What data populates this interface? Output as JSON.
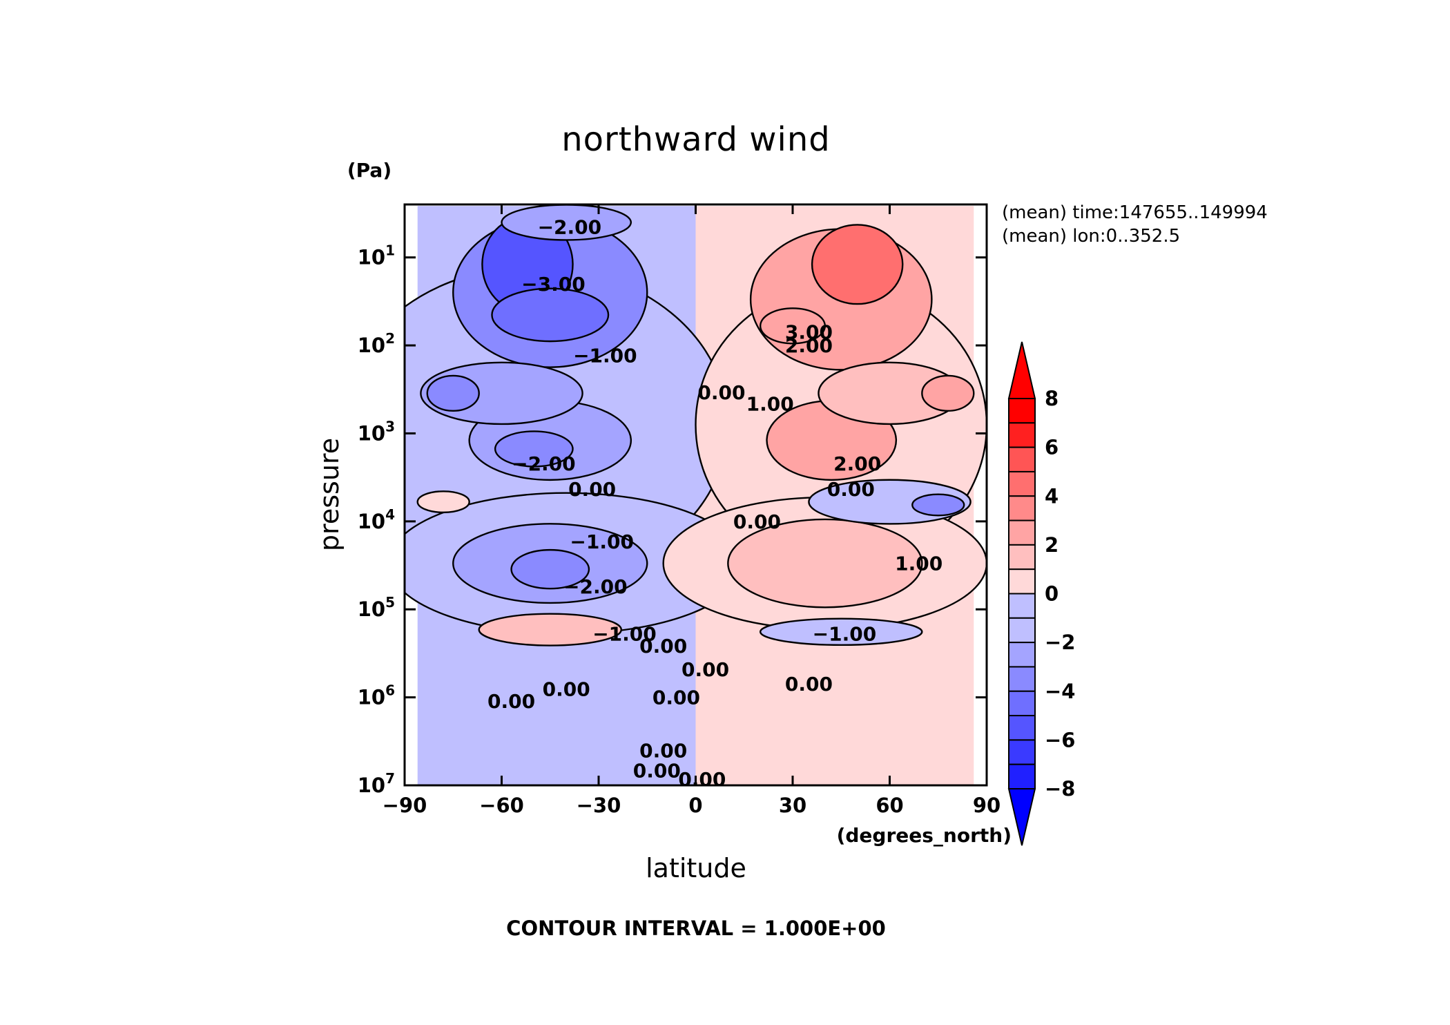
{
  "chart_data": {
    "type": "heatmap",
    "plot_style": "filled contour (shaded) with black contour lines",
    "title": "northward wind",
    "xlabel": "latitude",
    "ylabel": "pressure",
    "x_unit": "(degrees_north)",
    "y_unit": "(Pa)",
    "x_ticks": [
      "−90",
      "−60",
      "−30",
      "0",
      "30",
      "60",
      "90"
    ],
    "x_tick_values": [
      -90,
      -60,
      -30,
      0,
      30,
      60,
      90
    ],
    "xlim": [
      -90,
      90
    ],
    "y_scale": "log",
    "ylim": [
      10000000,
      2.5
    ],
    "y_ticks": [
      {
        "base": "10",
        "exp": "1",
        "value": 10
      },
      {
        "base": "10",
        "exp": "2",
        "value": 100
      },
      {
        "base": "10",
        "exp": "3",
        "value": 1000
      },
      {
        "base": "10",
        "exp": "4",
        "value": 10000
      },
      {
        "base": "10",
        "exp": "5",
        "value": 100000
      },
      {
        "base": "10",
        "exp": "6",
        "value": 1000000
      },
      {
        "base": "10",
        "exp": "7",
        "value": 10000000
      }
    ],
    "annotations": [
      "(mean) time:147655..149994",
      "(mean) lon:0..352.5"
    ],
    "footer": "CONTOUR INTERVAL = 1.000E+00",
    "contour_interval": 1.0,
    "colorbar": {
      "levels": [
        -8,
        -7,
        -6,
        -5,
        -4,
        -3,
        -2,
        -1,
        0,
        1,
        2,
        3,
        4,
        5,
        6,
        7,
        8
      ],
      "tick_labels": [
        "8",
        "6",
        "4",
        "2",
        "0",
        "−2",
        "−4",
        "−6",
        "−8"
      ],
      "tick_values": [
        8,
        6,
        4,
        2,
        0,
        -2,
        -4,
        -6,
        -8
      ],
      "extend": "both",
      "colors": [
        "#0000ff",
        "#2020ff",
        "#3a3aff",
        "#5555ff",
        "#6f6fff",
        "#8a8aff",
        "#a4a4ff",
        "#bfbfff",
        "#fff0f0",
        "#ffd9d9",
        "#ffbfbf",
        "#ffa4a4",
        "#ff8a8a",
        "#ff6f6f",
        "#ff5555",
        "#ff2020",
        "#ff0000"
      ]
    },
    "features": [
      {
        "lat": -52,
        "p": 12,
        "value": -5,
        "rx": 14,
        "ry": 0.55
      },
      {
        "lat": -45,
        "p": 45,
        "value": -4,
        "rx": 18,
        "ry": 0.3
      },
      {
        "lat": -40,
        "p": 4,
        "value": -2,
        "rx": 20,
        "ry": 0.2
      },
      {
        "lat": -45,
        "p": 25,
        "value": -3,
        "rx": 30,
        "ry": 0.85
      },
      {
        "lat": -75,
        "p": 350,
        "value": -3,
        "rx": 8,
        "ry": 0.2
      },
      {
        "lat": -60,
        "p": 350,
        "value": -2,
        "rx": 25,
        "ry": 0.35
      },
      {
        "lat": -50,
        "p": 1500,
        "value": -3,
        "rx": 12,
        "ry": 0.2
      },
      {
        "lat": -45,
        "p": 1200,
        "value": -2,
        "rx": 25,
        "ry": 0.45
      },
      {
        "lat": -50,
        "p": 800,
        "value": -1.5,
        "rx": 60,
        "ry": 1.8
      },
      {
        "lat": -78,
        "p": 6000,
        "value": 1,
        "rx": 8,
        "ry": 0.12
      },
      {
        "lat": 50,
        "p": 12,
        "value": 5,
        "rx": 14,
        "ry": 0.45
      },
      {
        "lat": 45,
        "p": 30,
        "value": 3,
        "rx": 28,
        "ry": 0.8
      },
      {
        "lat": 30,
        "p": 60,
        "value": 3,
        "rx": 10,
        "ry": 0.2
      },
      {
        "lat": 78,
        "p": 350,
        "value": 3,
        "rx": 8,
        "ry": 0.2
      },
      {
        "lat": 60,
        "p": 350,
        "value": 2,
        "rx": 22,
        "ry": 0.35
      },
      {
        "lat": 42,
        "p": 1200,
        "value": 2.5,
        "rx": 20,
        "ry": 0.45
      },
      {
        "lat": 45,
        "p": 800,
        "value": 1.2,
        "rx": 45,
        "ry": 1.6
      },
      {
        "lat": 75,
        "p": 6500,
        "value": -3,
        "rx": 8,
        "ry": 0.12
      },
      {
        "lat": 60,
        "p": 6000,
        "value": -1.5,
        "rx": 25,
        "ry": 0.25
      },
      {
        "lat": -45,
        "p": 35000,
        "value": -3,
        "rx": 12,
        "ry": 0.22
      },
      {
        "lat": -45,
        "p": 30000,
        "value": -2,
        "rx": 30,
        "ry": 0.45
      },
      {
        "lat": -40,
        "p": 30000,
        "value": -1.2,
        "rx": 55,
        "ry": 0.8
      },
      {
        "lat": 40,
        "p": 30000,
        "value": 1.5,
        "rx": 30,
        "ry": 0.5
      },
      {
        "lat": 40,
        "p": 30000,
        "value": 1,
        "rx": 50,
        "ry": 0.75
      },
      {
        "lat": -45,
        "p": 170000,
        "value": 1.5,
        "rx": 22,
        "ry": 0.18
      },
      {
        "lat": 45,
        "p": 180000,
        "value": -1.5,
        "rx": 25,
        "ry": 0.15
      }
    ],
    "contour_labels": [
      {
        "text": "−2.00",
        "lat": -39,
        "p": 4.5
      },
      {
        "text": "−3.00",
        "lat": -44,
        "p": 20
      },
      {
        "text": "3.00",
        "lat": 35,
        "p": 70
      },
      {
        "text": "2.00",
        "lat": 35,
        "p": 100
      },
      {
        "text": "−1.00",
        "lat": -28,
        "p": 130
      },
      {
        "text": "0.00",
        "lat": 8,
        "p": 340
      },
      {
        "text": "1.00",
        "lat": 23,
        "p": 460
      },
      {
        "text": "−2.00",
        "lat": -47,
        "p": 2200
      },
      {
        "text": "2.00",
        "lat": 50,
        "p": 2200
      },
      {
        "text": "0.00",
        "lat": -32,
        "p": 4300
      },
      {
        "text": "0.00",
        "lat": 48,
        "p": 4300
      },
      {
        "text": "0.00",
        "lat": 19,
        "p": 10000
      },
      {
        "text": "−1.00",
        "lat": -29,
        "p": 17000
      },
      {
        "text": "1.00",
        "lat": 69,
        "p": 30000
      },
      {
        "text": "−2.00",
        "lat": -31,
        "p": 55000
      },
      {
        "text": "−1.00",
        "lat": -22,
        "p": 190000
      },
      {
        "text": "0.00",
        "lat": -10,
        "p": 260000
      },
      {
        "text": "−1.00",
        "lat": 46,
        "p": 190000
      },
      {
        "text": "0.00",
        "lat": 3,
        "p": 480000
      },
      {
        "text": "0.00",
        "lat": -40,
        "p": 800000
      },
      {
        "text": "0.00",
        "lat": 35,
        "p": 700000
      },
      {
        "text": "0.00",
        "lat": -57,
        "p": 1100000
      },
      {
        "text": "0.00",
        "lat": -6,
        "p": 1000000
      },
      {
        "text": "0.00",
        "lat": -10,
        "p": 4000000
      },
      {
        "text": "0.00",
        "lat": -12,
        "p": 6800000
      },
      {
        "text": "0.00",
        "lat": 2,
        "p": 8500000
      }
    ]
  }
}
